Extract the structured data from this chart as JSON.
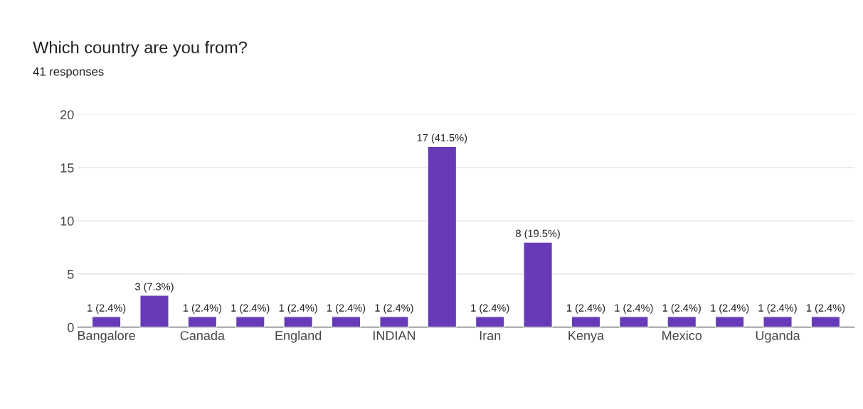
{
  "chart_data": {
    "type": "bar",
    "title": "Which country are you from?",
    "subtitle": "41 responses",
    "categories": [
      "Bangalore",
      null,
      "Canada",
      null,
      "England",
      null,
      "INDIAN",
      null,
      "Iran",
      null,
      "Kenya",
      null,
      "Mexico",
      null,
      "Uganda",
      null
    ],
    "values": [
      1,
      3,
      1,
      1,
      1,
      1,
      1,
      17,
      1,
      8,
      1,
      1,
      1,
      1,
      1,
      1
    ],
    "value_labels": [
      "1 (2.4%)",
      "3 (7.3%)",
      "1 (2.4%)",
      "1 (2.4%)",
      "1 (2.4%)",
      "1 (2.4%)",
      "1 (2.4%)",
      "17 (41.5%)",
      "1 (2.4%)",
      "8 (19.5%)",
      "1 (2.4%)",
      "1 (2.4%)",
      "1 (2.4%)",
      "1 (2.4%)",
      "1 (2.4%)",
      "1 (2.4%)"
    ],
    "color": "#673ab7",
    "ylim": [
      0,
      20
    ],
    "yticks": [
      0,
      5,
      10,
      15,
      20
    ],
    "grid": "y"
  }
}
